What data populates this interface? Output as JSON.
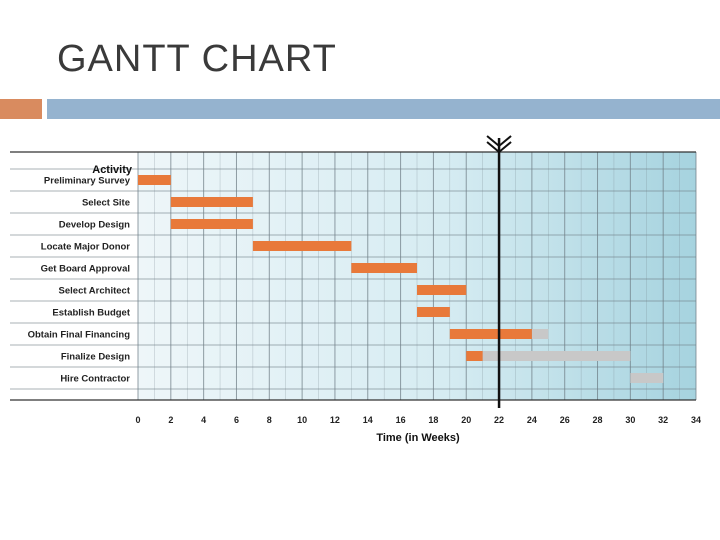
{
  "slide": {
    "title": "GANTT CHART"
  },
  "chart_data": {
    "type": "gantt",
    "title": "",
    "ylabel": "Activity",
    "xlabel": "Time (in Weeks)",
    "xlim": [
      0,
      34
    ],
    "xticks": [
      0,
      2,
      4,
      6,
      8,
      10,
      12,
      14,
      16,
      18,
      20,
      22,
      24,
      26,
      28,
      30,
      32,
      34
    ],
    "current_week": 22,
    "colors": {
      "planned": "#e8793a",
      "remaining": "#c8c8c8",
      "marker": "#111111",
      "grid": "#6f7e86"
    },
    "tasks": [
      {
        "name": "Preliminary Survey",
        "start": 0,
        "end": 2,
        "remaining_end": null
      },
      {
        "name": "Select Site",
        "start": 2,
        "end": 7,
        "remaining_end": null
      },
      {
        "name": "Develop Design",
        "start": 2,
        "end": 7,
        "remaining_end": null
      },
      {
        "name": "Locate Major Donor",
        "start": 7,
        "end": 13,
        "remaining_end": null
      },
      {
        "name": "Get Board Approval",
        "start": 13,
        "end": 17,
        "remaining_end": null
      },
      {
        "name": "Select Architect",
        "start": 17,
        "end": 20,
        "remaining_end": null
      },
      {
        "name": "Establish Budget",
        "start": 17,
        "end": 19,
        "remaining_end": null
      },
      {
        "name": "Obtain Final Financing",
        "start": 19,
        "end": 24,
        "remaining_end": 25
      },
      {
        "name": "Finalize Design",
        "start": 20,
        "end": 21,
        "remaining_end": 30
      },
      {
        "name": "Hire Contractor",
        "start": 30,
        "end": 30,
        "remaining_end": 32
      }
    ]
  }
}
